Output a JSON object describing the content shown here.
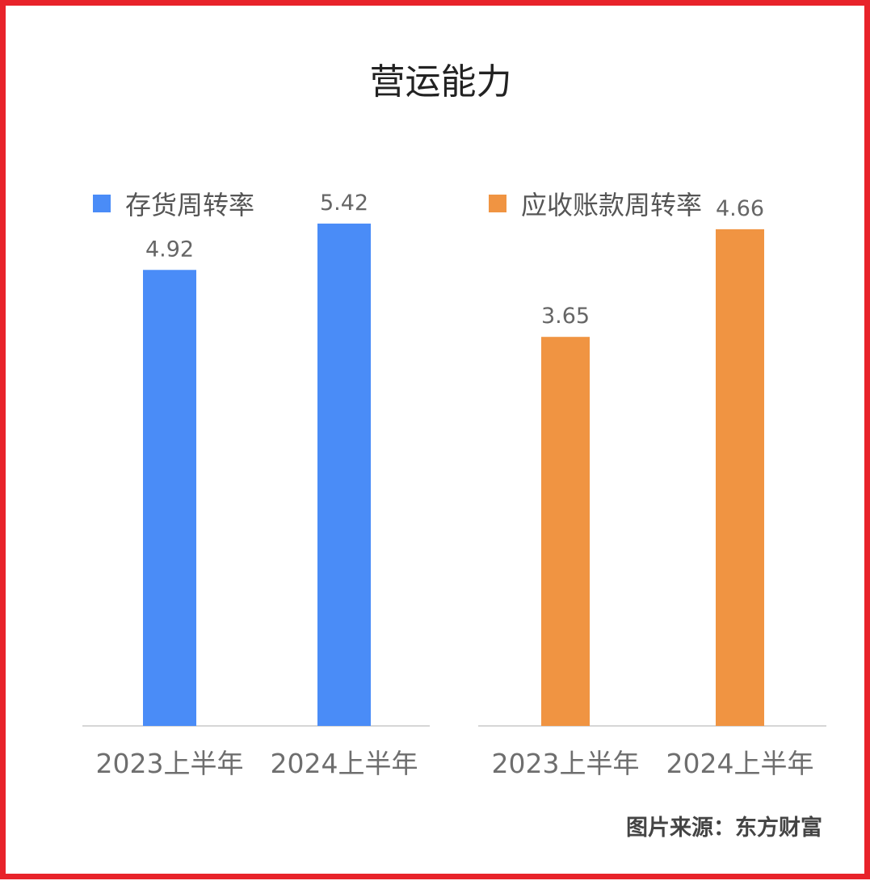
{
  "title": "营运能力",
  "source": "图片来源：东方财富",
  "chart_data": [
    {
      "type": "bar",
      "categories": [
        "2023上半年",
        "2024上半年"
      ],
      "series": [
        {
          "name": "存货周转率",
          "values": [
            4.92,
            5.42
          ],
          "color": "#4a8cf7"
        }
      ],
      "ylim": [
        0,
        5.75
      ]
    },
    {
      "type": "bar",
      "categories": [
        "2023上半年",
        "2024上半年"
      ],
      "series": [
        {
          "name": "应收账款周转率",
          "values": [
            3.65,
            4.66
          ],
          "color": "#f09442"
        }
      ],
      "ylim": [
        0,
        5.0
      ]
    }
  ]
}
